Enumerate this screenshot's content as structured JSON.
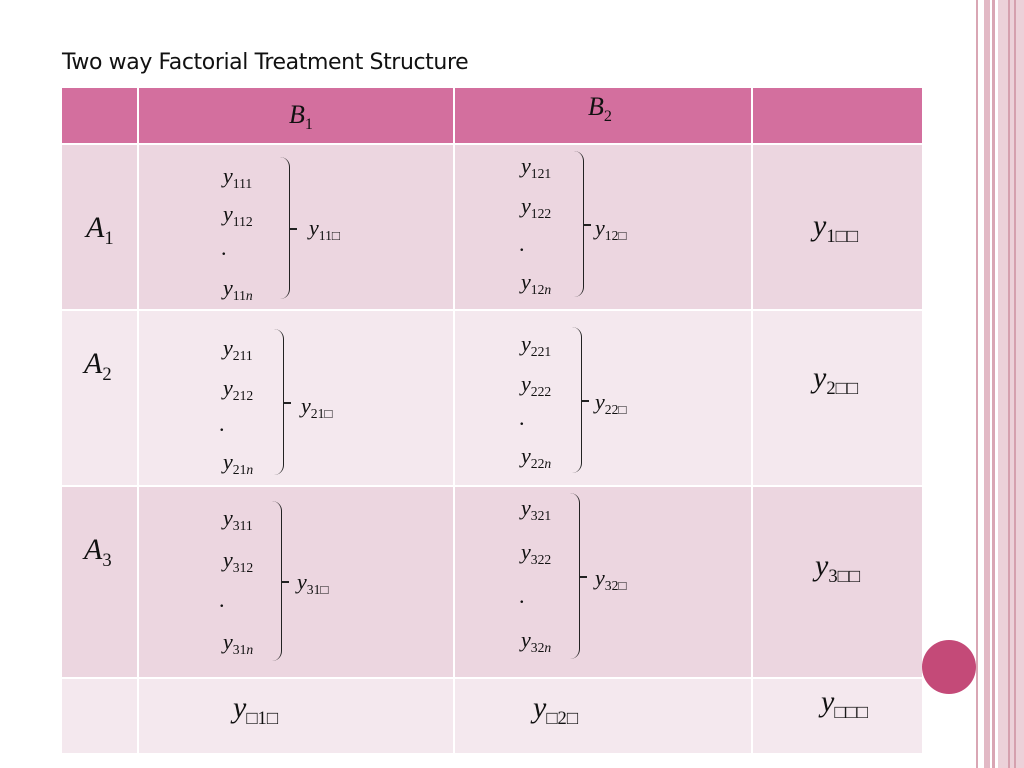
{
  "slide": {
    "title": "Two way Factorial Treatment Structure"
  },
  "table": {
    "col_headers": [
      {
        "var": "B",
        "sub": "1"
      },
      {
        "var": "B",
        "sub": "2"
      }
    ],
    "rows": [
      {
        "label": {
          "var": "A",
          "sub": "1"
        },
        "cells": [
          {
            "entries": [
              {
                "var": "y",
                "sub": "111"
              },
              {
                "var": "y",
                "sub": "112"
              },
              {
                "var": "y",
                "sub": "11",
                "subi": "n"
              }
            ],
            "dot": ".",
            "total": {
              "var": "y",
              "sub": "11□"
            }
          },
          {
            "entries": [
              {
                "var": "y",
                "sub": "121"
              },
              {
                "var": "y",
                "sub": "122"
              },
              {
                "var": "y",
                "sub": "12",
                "subi": "n"
              }
            ],
            "dot": ".",
            "total": {
              "var": "y",
              "sub": "12□"
            }
          }
        ],
        "row_total": {
          "var": "y",
          "sub": "1□□"
        }
      },
      {
        "label": {
          "var": "A",
          "sub": "2"
        },
        "cells": [
          {
            "entries": [
              {
                "var": "y",
                "sub": "211"
              },
              {
                "var": "y",
                "sub": "212"
              },
              {
                "var": "y",
                "sub": "21",
                "subi": "n"
              }
            ],
            "dot": ".",
            "total": {
              "var": "y",
              "sub": "21□"
            }
          },
          {
            "entries": [
              {
                "var": "y",
                "sub": "221"
              },
              {
                "var": "y",
                "sub": "222"
              },
              {
                "var": "y",
                "sub": "22",
                "subi": "n"
              }
            ],
            "dot": ".",
            "total": {
              "var": "y",
              "sub": "22□"
            }
          }
        ],
        "row_total": {
          "var": "y",
          "sub": "2□□"
        }
      },
      {
        "label": {
          "var": "A",
          "sub": "3"
        },
        "cells": [
          {
            "entries": [
              {
                "var": "y",
                "sub": "311"
              },
              {
                "var": "y",
                "sub": "312"
              },
              {
                "var": "y",
                "sub": "31",
                "subi": "n"
              }
            ],
            "dot": ".",
            "total": {
              "var": "y",
              "sub": "31□"
            }
          },
          {
            "entries": [
              {
                "var": "y",
                "sub": "321"
              },
              {
                "var": "y",
                "sub": "322"
              },
              {
                "var": "y",
                "sub": "32",
                "subi": "n"
              }
            ],
            "dot": ".",
            "total": {
              "var": "y",
              "sub": "32□"
            }
          }
        ],
        "row_total": {
          "var": "y",
          "sub": "3□□"
        }
      }
    ],
    "col_totals": [
      {
        "var": "y",
        "sub": "□1□"
      },
      {
        "var": "y",
        "sub": "□2□"
      }
    ],
    "grand_total": {
      "var": "y",
      "sub": "□□□"
    }
  },
  "colors": {
    "header": "#d36f9e",
    "row_dark": "#ecd6e0",
    "row_light": "#f4e8ee",
    "accent_circle": "#c44a78"
  }
}
